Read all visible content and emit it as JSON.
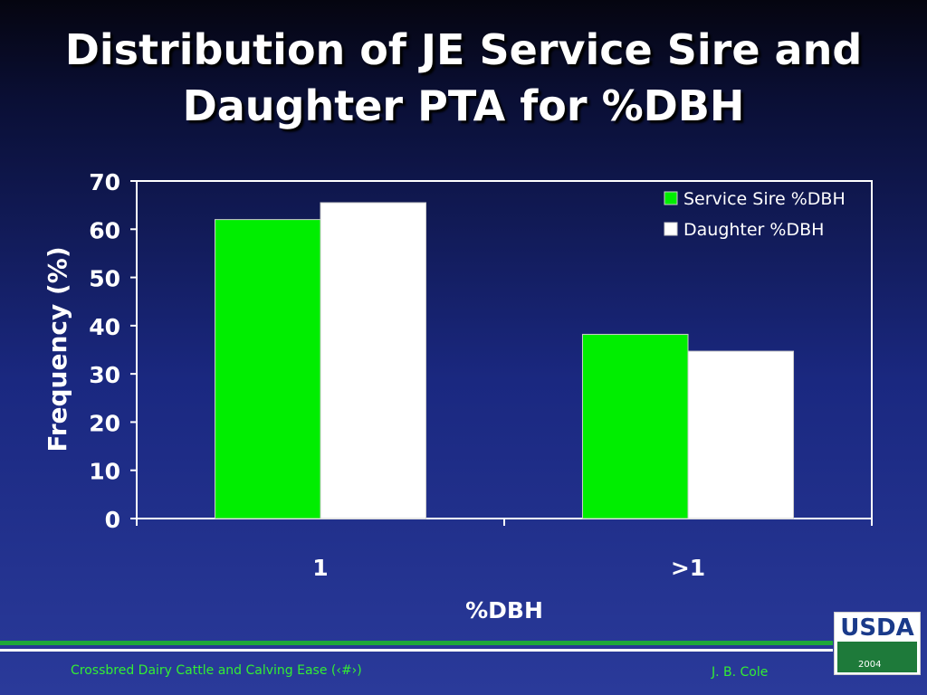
{
  "slide": {
    "title_line1": "Distribution of JE Service Sire and",
    "title_line2": "Daughter PTA for %DBH",
    "footer_left": "Crossbred Dairy Cattle and Calving Ease (‹#›)",
    "footer_right": "J. B. Cole",
    "logo_text": "USDA",
    "logo_year": "2004"
  },
  "chart_data": {
    "type": "bar",
    "title": "",
    "xlabel": "%DBH",
    "ylabel": "Frequency (%)",
    "categories": [
      "1",
      ">1"
    ],
    "series": [
      {
        "name": "Service Sire %DBH",
        "values": [
          62,
          38.2
        ],
        "color": "#00ee00"
      },
      {
        "name": "Daughter %DBH",
        "values": [
          65.5,
          34.7
        ],
        "color": "#ffffff"
      }
    ],
    "ylim": [
      0,
      70
    ],
    "yticks": [
      0,
      10,
      20,
      30,
      40,
      50,
      60,
      70
    ],
    "grid": false,
    "legend": "top-right"
  },
  "colors": {
    "axis": "#ffffff",
    "text": "#ffffff",
    "footer": "#33ee33"
  }
}
